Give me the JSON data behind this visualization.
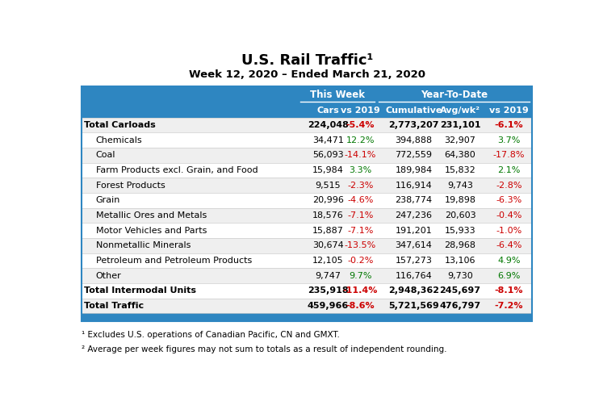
{
  "title": "U.S. Rail Traffic¹",
  "subtitle": "Week 12, 2020 – Ended March 21, 2020",
  "header1": "This Week",
  "header2": "Year-To-Date",
  "col_headers": [
    "Cars",
    "vs 2019",
    "Cumulative",
    "Avg/wk²",
    "vs 2019"
  ],
  "rows": [
    {
      "label": "Total Carloads",
      "bold": true,
      "indent": false,
      "cars": "224,048",
      "vs2019_tw": "-5.4%",
      "cumulative": "2,773,207",
      "avgwk": "231,101",
      "vs2019_ytd": "-6.1%",
      "tw_color": "#cc0000",
      "ytd_color": "#cc0000",
      "bg": "#efefef"
    },
    {
      "label": "Chemicals",
      "bold": false,
      "indent": true,
      "cars": "34,471",
      "vs2019_tw": "12.2%",
      "cumulative": "394,888",
      "avgwk": "32,907",
      "vs2019_ytd": "3.7%",
      "tw_color": "#007700",
      "ytd_color": "#007700",
      "bg": "#ffffff"
    },
    {
      "label": "Coal",
      "bold": false,
      "indent": true,
      "cars": "56,093",
      "vs2019_tw": "-14.1%",
      "cumulative": "772,559",
      "avgwk": "64,380",
      "vs2019_ytd": "-17.8%",
      "tw_color": "#cc0000",
      "ytd_color": "#cc0000",
      "bg": "#efefef"
    },
    {
      "label": "Farm Products excl. Grain, and Food",
      "bold": false,
      "indent": true,
      "cars": "15,984",
      "vs2019_tw": "3.3%",
      "cumulative": "189,984",
      "avgwk": "15,832",
      "vs2019_ytd": "2.1%",
      "tw_color": "#007700",
      "ytd_color": "#007700",
      "bg": "#ffffff"
    },
    {
      "label": "Forest Products",
      "bold": false,
      "indent": true,
      "cars": "9,515",
      "vs2019_tw": "-2.3%",
      "cumulative": "116,914",
      "avgwk": "9,743",
      "vs2019_ytd": "-2.8%",
      "tw_color": "#cc0000",
      "ytd_color": "#cc0000",
      "bg": "#efefef"
    },
    {
      "label": "Grain",
      "bold": false,
      "indent": true,
      "cars": "20,996",
      "vs2019_tw": "-4.6%",
      "cumulative": "238,774",
      "avgwk": "19,898",
      "vs2019_ytd": "-6.3%",
      "tw_color": "#cc0000",
      "ytd_color": "#cc0000",
      "bg": "#ffffff"
    },
    {
      "label": "Metallic Ores and Metals",
      "bold": false,
      "indent": true,
      "cars": "18,576",
      "vs2019_tw": "-7.1%",
      "cumulative": "247,236",
      "avgwk": "20,603",
      "vs2019_ytd": "-0.4%",
      "tw_color": "#cc0000",
      "ytd_color": "#cc0000",
      "bg": "#efefef"
    },
    {
      "label": "Motor Vehicles and Parts",
      "bold": false,
      "indent": true,
      "cars": "15,887",
      "vs2019_tw": "-7.1%",
      "cumulative": "191,201",
      "avgwk": "15,933",
      "vs2019_ytd": "-1.0%",
      "tw_color": "#cc0000",
      "ytd_color": "#cc0000",
      "bg": "#ffffff"
    },
    {
      "label": "Nonmetallic Minerals",
      "bold": false,
      "indent": true,
      "cars": "30,674",
      "vs2019_tw": "-13.5%",
      "cumulative": "347,614",
      "avgwk": "28,968",
      "vs2019_ytd": "-6.4%",
      "tw_color": "#cc0000",
      "ytd_color": "#cc0000",
      "bg": "#efefef"
    },
    {
      "label": "Petroleum and Petroleum Products",
      "bold": false,
      "indent": true,
      "cars": "12,105",
      "vs2019_tw": "-0.2%",
      "cumulative": "157,273",
      "avgwk": "13,106",
      "vs2019_ytd": "4.9%",
      "tw_color": "#cc0000",
      "ytd_color": "#007700",
      "bg": "#ffffff"
    },
    {
      "label": "Other",
      "bold": false,
      "indent": true,
      "cars": "9,747",
      "vs2019_tw": "9.7%",
      "cumulative": "116,764",
      "avgwk": "9,730",
      "vs2019_ytd": "6.9%",
      "tw_color": "#007700",
      "ytd_color": "#007700",
      "bg": "#efefef"
    },
    {
      "label": "Total Intermodal Units",
      "bold": true,
      "indent": false,
      "cars": "235,918",
      "vs2019_tw": "-11.4%",
      "cumulative": "2,948,362",
      "avgwk": "245,697",
      "vs2019_ytd": "-8.1%",
      "tw_color": "#cc0000",
      "ytd_color": "#cc0000",
      "bg": "#ffffff"
    },
    {
      "label": "Total Traffic",
      "bold": true,
      "indent": false,
      "cars": "459,966",
      "vs2019_tw": "-8.6%",
      "cumulative": "5,721,569",
      "avgwk": "476,797",
      "vs2019_ytd": "-7.2%",
      "tw_color": "#cc0000",
      "ytd_color": "#cc0000",
      "bg": "#efefef"
    }
  ],
  "footnote1": "¹ Excludes U.S. operations of Canadian Pacific, CN and GMXT.",
  "footnote2": "² Average per week figures may not sum to totals as a result of independent rounding.",
  "header_bg": "#2e86c1",
  "header_text": "#ffffff",
  "border_color": "#2e86c1"
}
